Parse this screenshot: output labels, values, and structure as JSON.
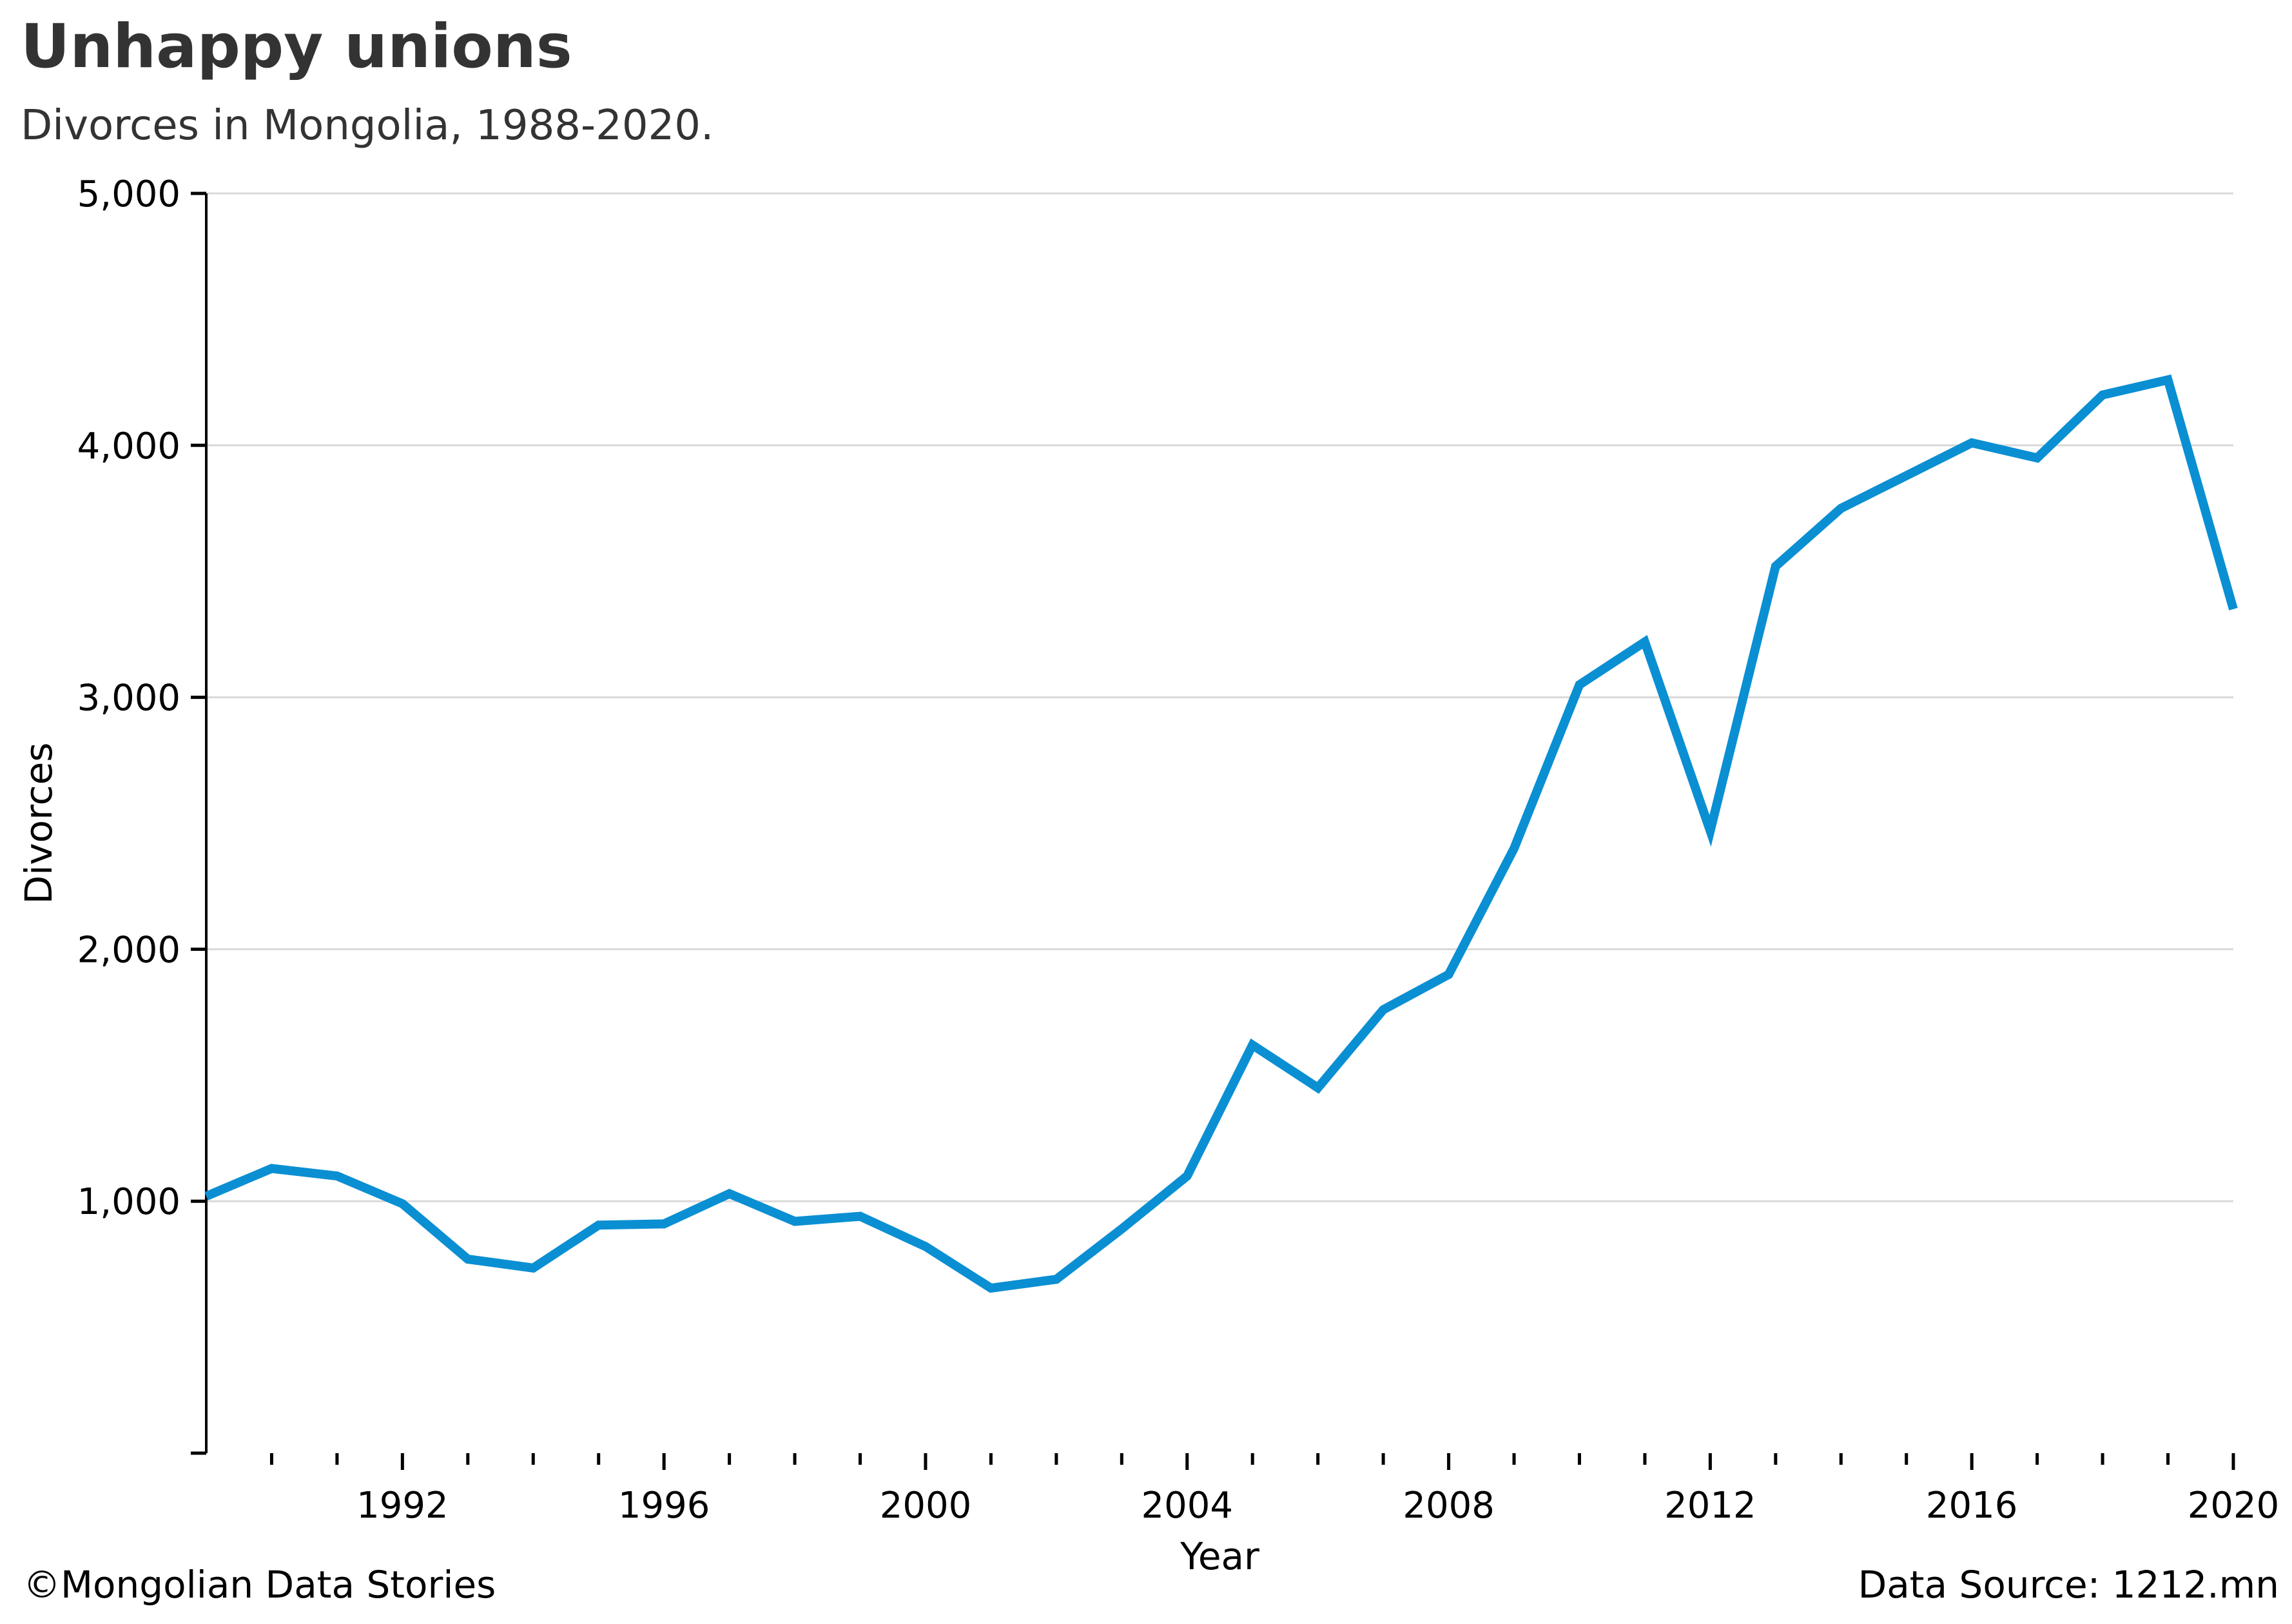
{
  "header": {
    "title": "Unhappy unions",
    "subtitle": "Divorces in Mongolia, 1988-2020."
  },
  "footer": {
    "credit": "©Mongolian Data Stories",
    "source": "Data Source: 1212.mn"
  },
  "colors": {
    "line": "#0a8fd3",
    "grid": "#d9d9d9",
    "axis": "#000000",
    "text": "#333333"
  },
  "chart_data": {
    "type": "line",
    "xlabel": "Year",
    "ylabel": "Divorces",
    "xlim": [
      1989,
      2020
    ],
    "ylim": [
      0,
      5000
    ],
    "x_ticks": [
      1992,
      1996,
      2000,
      2004,
      2008,
      2012,
      2016,
      2020
    ],
    "y_ticks": [
      1000,
      2000,
      3000,
      4000,
      5000
    ],
    "y_tick_labels": [
      "1,000",
      "2,000",
      "3,000",
      "4,000",
      "5,000"
    ],
    "grid": "horizontal",
    "legend": "none",
    "series": [
      {
        "color": "#0a8fd3",
        "x": [
          1989,
          1990,
          1991,
          1992,
          1993,
          1994,
          1995,
          1996,
          1997,
          1998,
          1999,
          2000,
          2001,
          2002,
          2003,
          2004,
          2005,
          2006,
          2007,
          2008,
          2009,
          2010,
          2011,
          2012,
          2013,
          2014,
          2015,
          2016,
          2017,
          2018,
          2019,
          2020
        ],
        "values": [
          1020,
          1130,
          1100,
          990,
          770,
          735,
          905,
          910,
          1030,
          920,
          940,
          820,
          655,
          690,
          890,
          1100,
          1620,
          1450,
          1760,
          1900,
          2400,
          3050,
          3220,
          2470,
          3520,
          3750,
          3880,
          4010,
          3950,
          4200,
          4260,
          3350
        ]
      }
    ]
  }
}
